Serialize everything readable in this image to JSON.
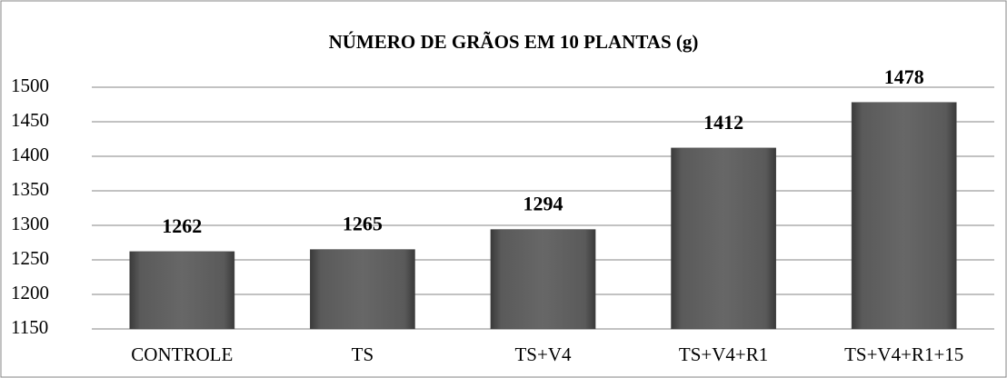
{
  "chart_data": {
    "type": "bar",
    "title": "NÚMERO DE GRÃOS EM 10 PLANTAS (g)",
    "categories": [
      "CONTROLE",
      "TS",
      "TS+V4",
      "TS+V4+R1",
      "TS+V4+R1+15"
    ],
    "values": [
      1262,
      1265,
      1294,
      1412,
      1478
    ],
    "color": "#555555",
    "ylim": [
      1150,
      1500
    ],
    "yticks": [
      1150,
      1200,
      1250,
      1300,
      1350,
      1400,
      1450,
      1500
    ],
    "grid": true
  }
}
